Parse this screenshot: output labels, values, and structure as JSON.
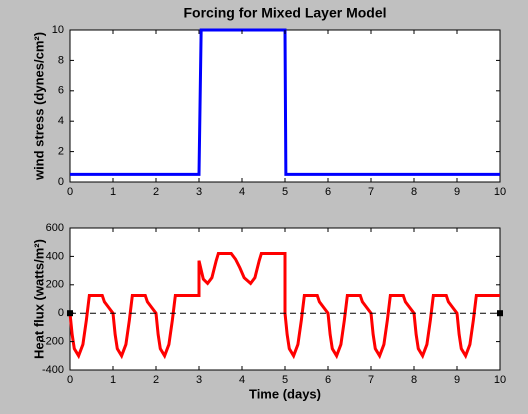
{
  "chart_data": [
    {
      "type": "line",
      "title": "Forcing for Mixed Layer Model",
      "ylabel": "wind stress (dynes/cm²)",
      "x": [
        0,
        3,
        3.05,
        5,
        5.02,
        10
      ],
      "series": [
        {
          "color": "#0000ff",
          "values": [
            0.5,
            0.5,
            10,
            10,
            0.5,
            0.5
          ]
        }
      ],
      "xlim": [
        0,
        10
      ],
      "ylim": [
        0,
        10
      ],
      "xticks": [
        0,
        1,
        2,
        3,
        4,
        5,
        6,
        7,
        8,
        9,
        10
      ],
      "yticks": [
        0,
        2,
        4,
        6,
        8,
        10
      ]
    },
    {
      "type": "line",
      "xlabel": "Time (days)",
      "ylabel": "Heat flux (watts/m²)",
      "x": [
        0,
        0.05,
        0.1,
        0.2,
        0.3,
        0.38,
        0.45,
        0.75,
        0.8,
        0.9,
        1,
        1.05,
        1.1,
        1.2,
        1.3,
        1.38,
        1.45,
        1.75,
        1.8,
        1.9,
        2,
        2.05,
        2.1,
        2.2,
        2.3,
        2.38,
        2.45,
        3,
        3,
        3.1,
        3.2,
        3.3,
        3.4,
        3.45,
        3.75,
        3.85,
        3.95,
        4.05,
        4.2,
        4.3,
        4.4,
        4.45,
        5,
        5,
        5.05,
        5.1,
        5.2,
        5.3,
        5.38,
        5.45,
        5.75,
        5.8,
        5.9,
        6,
        6.05,
        6.1,
        6.2,
        6.3,
        6.38,
        6.45,
        6.75,
        6.8,
        6.9,
        7,
        7.05,
        7.1,
        7.2,
        7.3,
        7.38,
        7.45,
        7.75,
        7.8,
        7.9,
        8,
        8.05,
        8.1,
        8.2,
        8.3,
        8.38,
        8.45,
        8.75,
        8.8,
        8.9,
        9,
        9.05,
        9.1,
        9.2,
        9.3,
        9.38,
        9.45,
        10
      ],
      "series": [
        {
          "color": "#ff0000",
          "values": [
            0,
            -150,
            -250,
            -300,
            -220,
            -50,
            125,
            125,
            80,
            40,
            0,
            -150,
            -250,
            -300,
            -220,
            -50,
            125,
            125,
            80,
            40,
            0,
            -150,
            -250,
            -300,
            -220,
            -50,
            125,
            125,
            370,
            240,
            210,
            250,
            370,
            420,
            420,
            380,
            320,
            250,
            210,
            250,
            370,
            420,
            420,
            0,
            -150,
            -250,
            -300,
            -220,
            -50,
            125,
            125,
            80,
            40,
            0,
            -150,
            -250,
            -300,
            -220,
            -50,
            125,
            125,
            80,
            40,
            0,
            -150,
            -250,
            -300,
            -220,
            -50,
            125,
            125,
            80,
            40,
            0,
            -150,
            -250,
            -300,
            -220,
            -50,
            125,
            125,
            80,
            40,
            0,
            -150,
            -250,
            -300,
            -220,
            -50,
            125,
            125
          ]
        },
        {
          "color": "#000000",
          "linestyle": "dashed",
          "marker": "square",
          "x": [
            0,
            10
          ],
          "values": [
            0,
            0
          ]
        }
      ],
      "xlim": [
        0,
        10
      ],
      "ylim": [
        -400,
        600
      ],
      "xticks": [
        0,
        1,
        2,
        3,
        4,
        5,
        6,
        7,
        8,
        9,
        10
      ],
      "yticks": [
        -400,
        -200,
        0,
        200,
        400,
        600
      ]
    }
  ]
}
